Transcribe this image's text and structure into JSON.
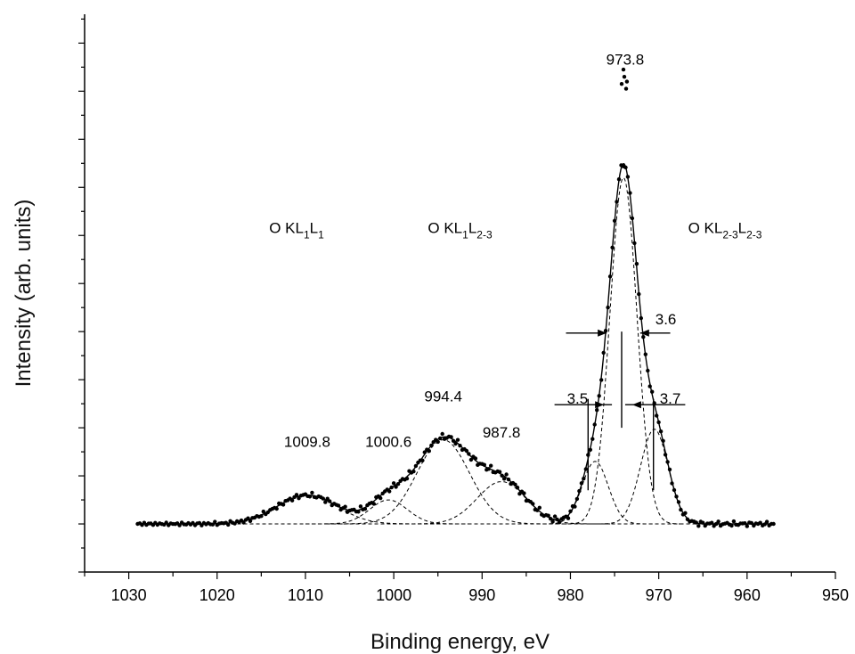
{
  "chart_data": {
    "type": "line",
    "title": "",
    "xlabel": "Binding energy, eV",
    "ylabel": "Intensity (arb. units)",
    "xlim": [
      1035,
      950
    ],
    "ylim": [
      -1,
      10.6
    ],
    "x_reversed": true,
    "grid": false,
    "y_tick_labels": false,
    "x_ticks": [
      1030,
      1020,
      1010,
      1000,
      990,
      980,
      970,
      960,
      950
    ],
    "x_tick_labels": [
      "1030",
      "1020",
      "1010",
      "1000",
      "990",
      "980",
      "970",
      "960",
      "950"
    ],
    "components": [
      {
        "center": 1009.8,
        "fwhm": 8.0,
        "height": 0.6
      },
      {
        "center": 1000.6,
        "fwhm": 5.0,
        "height": 0.5
      },
      {
        "center": 994.4,
        "fwhm": 7.0,
        "height": 1.75
      },
      {
        "center": 987.8,
        "fwhm": 6.5,
        "height": 0.88
      },
      {
        "center": 977.2,
        "fwhm": 3.5,
        "height": 1.3
      },
      {
        "center": 974.0,
        "fwhm": 3.6,
        "height": 7.2
      },
      {
        "center": 970.5,
        "fwhm": 3.7,
        "height": 1.97
      }
    ],
    "fit_x_range": [
      1029,
      957
    ],
    "peak_labels": [
      {
        "text": "973.8",
        "x": 973.8,
        "y": 9.55
      },
      {
        "text": "994.4",
        "x": 994.4,
        "y": 2.55
      },
      {
        "text": "987.8",
        "x": 987.8,
        "y": 1.8
      },
      {
        "text": "1009.8",
        "x": 1009.8,
        "y": 1.6
      },
      {
        "text": "1000.6",
        "x": 1000.6,
        "y": 1.6
      }
    ],
    "transition_labels": [
      {
        "base": "O KL",
        "s1": "1",
        "mid": "L",
        "s2": "1",
        "x": 1011,
        "y": 6.05
      },
      {
        "base": "O KL",
        "s1": "1",
        "mid": "L",
        "s2": "2-3",
        "x": 992.5,
        "y": 6.05
      },
      {
        "base": "O KL",
        "s1": "2-3",
        "mid": "L",
        "s2": "2-3",
        "x": 962.5,
        "y": 6.05
      }
    ],
    "width_annotations": [
      {
        "text": "3.6",
        "x": 969.2,
        "y": 4.15
      },
      {
        "text": "3.5",
        "x": 979.2,
        "y": 2.5
      },
      {
        "text": "3.7",
        "x": 968.7,
        "y": 2.5
      }
    ]
  }
}
